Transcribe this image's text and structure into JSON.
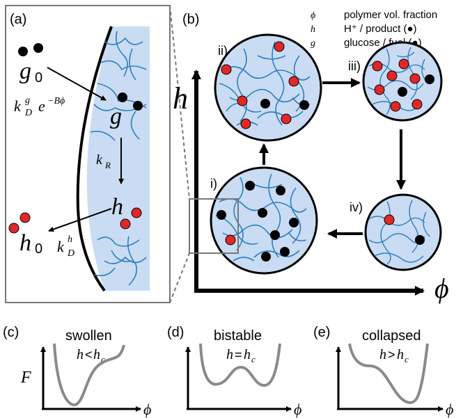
{
  "panel_a": {
    "label": "(a)",
    "g0": "g",
    "g0_sub": "0",
    "kdg": "k",
    "kdg_sub": "D",
    "kdg_sup": "g",
    "kdg_exp_base": "e",
    "kdg_exp": "−Bϕ",
    "g": "g",
    "kr": "k",
    "kr_sub": "R",
    "h": "h",
    "h0": "h",
    "h0_sub": "0",
    "kdh": "k",
    "kdh_sub": "D",
    "kdh_sup": "h"
  },
  "panel_b": {
    "label": "(b)",
    "y_axis": "h",
    "x_axis": "ϕ",
    "legend": [
      {
        "symbol": "ϕ",
        "text": "polymer vol. fraction"
      },
      {
        "symbol": "h",
        "text": "H⁺ / product (●)"
      },
      {
        "symbol": "g",
        "text": "glucose / fuel (●)"
      }
    ],
    "states": [
      {
        "label": "i)"
      },
      {
        "label": "ii)"
      },
      {
        "label": "iii)"
      },
      {
        "label": "iv)"
      }
    ]
  },
  "bottom": [
    {
      "label": "(c)",
      "title": "swollen",
      "cond_h": "h",
      "cond_op": "<",
      "cond_rhs": "h",
      "cond_sub": "c",
      "x_axis": "ϕ",
      "y_axis": "F"
    },
    {
      "label": "(d)",
      "title": "bistable",
      "cond_h": "h",
      "cond_op": "=",
      "cond_rhs": "h",
      "cond_sub": "c",
      "x_axis": "ϕ",
      "y_axis": ""
    },
    {
      "label": "(e)",
      "title": "collapsed",
      "cond_h": "h",
      "cond_op": ">",
      "cond_rhs": "h",
      "cond_sub": "c",
      "x_axis": "ϕ",
      "y_axis": ""
    }
  ],
  "colors": {
    "gel": "#c9dcf3",
    "polymer": "#2f7fbf",
    "product": "#e02828",
    "fuel": "#000000",
    "curve": "#8a8a8a"
  }
}
